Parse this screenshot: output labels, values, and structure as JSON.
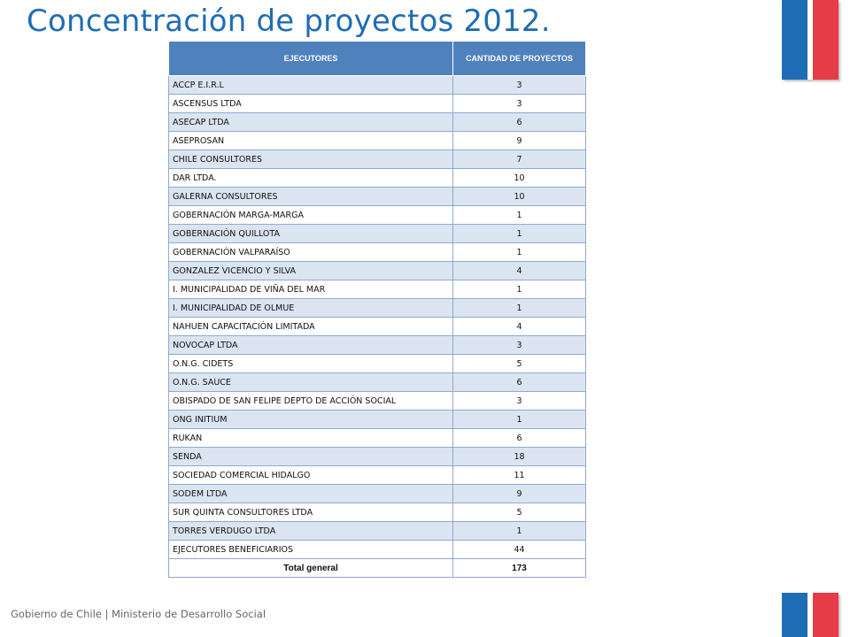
{
  "title": "Concentración de proyectos 2012.",
  "table": {
    "headers": [
      "EJECUTORES",
      "CANTIDAD DE PROYECTOS"
    ],
    "rows": [
      [
        "ACCP E.I.R.L",
        "3"
      ],
      [
        "ASCENSUS LTDA",
        "3"
      ],
      [
        "ASECAP LTDA",
        "6"
      ],
      [
        "ASEPROSAN",
        "9"
      ],
      [
        "CHILE CONSULTORES",
        "7"
      ],
      [
        "DAR LTDA.",
        "10"
      ],
      [
        "GALERNA CONSULTORES",
        "10"
      ],
      [
        "GOBERNACIÓN MARGA-MARGA",
        "1"
      ],
      [
        "GOBERNACIÓN QUILLOTA",
        "1"
      ],
      [
        "GOBERNACIÓN VALPARAÍSO",
        "1"
      ],
      [
        "GONZALEZ VICENCIO Y SILVA",
        "4"
      ],
      [
        "I. MUNICIPALIDAD DE VIÑA DEL MAR",
        "1"
      ],
      [
        "I. MUNICIPALIDAD DE OLMUE",
        "1"
      ],
      [
        "NAHUEN CAPACITACIÓN LIMITADA",
        "4"
      ],
      [
        "NOVOCAP LTDA",
        "3"
      ],
      [
        "O.N.G. CIDETS",
        "5"
      ],
      [
        "O.N.G. SAUCE",
        "6"
      ],
      [
        "OBISPADO DE SAN FELIPE DEPTO DE ACCIÓN SOCIAL",
        "3"
      ],
      [
        "ONG INITIUM",
        "1"
      ],
      [
        "RUKAN",
        "6"
      ],
      [
        "SENDA",
        "18"
      ],
      [
        "SOCIEDAD COMERCIAL HIDALGO",
        "11"
      ],
      [
        "SODEM LTDA",
        "9"
      ],
      [
        "SUR QUINTA CONSULTORES LTDA",
        "5"
      ],
      [
        "TORRES VERDUGO LTDA",
        "1"
      ],
      [
        "EJECUTORES BENEFICIARIOS",
        "44"
      ]
    ],
    "total": [
      "Total general",
      "173"
    ]
  },
  "footer": "Gobierno de Chile | Ministerio de Desarrollo Social",
  "colors": {
    "title": "#1f6db5",
    "header_bg": "#4f81bd",
    "band_row": "#dbe5f1",
    "flag_blue": "#1f6db5",
    "flag_red": "#e63c47"
  }
}
